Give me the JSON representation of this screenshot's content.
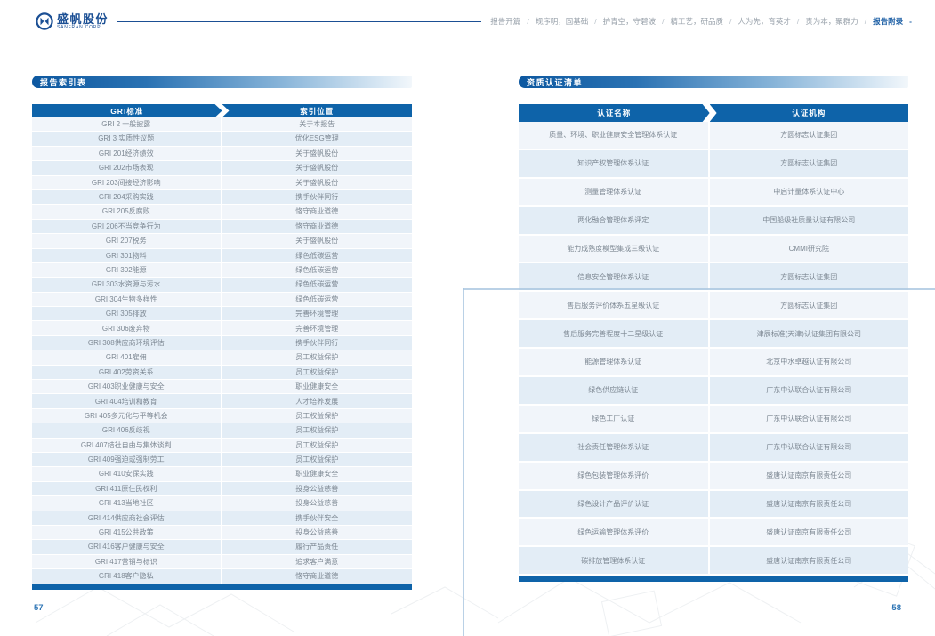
{
  "brand": {
    "logo_cn": "盛帆股份",
    "logo_en": "SANFRAN CORP"
  },
  "nav": {
    "separator": "/",
    "active_suffix": "-",
    "items": [
      {
        "label": "报告开篇",
        "active": false
      },
      {
        "label": "规序明，固基础",
        "active": false
      },
      {
        "label": "护青空，守碧波",
        "active": false
      },
      {
        "label": "精工艺，研品质",
        "active": false
      },
      {
        "label": "人为先，育英才",
        "active": false
      },
      {
        "label": "责为本，聚群力",
        "active": false
      },
      {
        "label": "报告附录",
        "active": true
      }
    ]
  },
  "left_page": {
    "section_title": "报告索引表",
    "page_number": "57",
    "table": {
      "headers": [
        "GRI标准",
        "索引位置"
      ],
      "rows": [
        [
          "GRI 2 一般披露",
          "关于本报告"
        ],
        [
          "GRI 3 实质性议题",
          "优化ESG管理"
        ],
        [
          "GRI 201经济绩效",
          "关于盛帆股份"
        ],
        [
          "GRI 202市场表现",
          "关于盛帆股份"
        ],
        [
          "GRI 203间接经济影响",
          "关于盛帆股份"
        ],
        [
          "GRI 204采购实践",
          "携手伙伴同行"
        ],
        [
          "GRI 205反腐败",
          "恪守商业道德"
        ],
        [
          "GRI 206不当竞争行为",
          "恪守商业道德"
        ],
        [
          "GRI 207税务",
          "关于盛帆股份"
        ],
        [
          "GRI 301物料",
          "绿色低碳运营"
        ],
        [
          "GRI 302能源",
          "绿色低碳运营"
        ],
        [
          "GRI 303水资源与污水",
          "绿色低碳运营"
        ],
        [
          "GRI 304生物多样性",
          "绿色低碳运营"
        ],
        [
          "GRI 305排放",
          "完善环境管理"
        ],
        [
          "GRI 306废弃物",
          "完善环境管理"
        ],
        [
          "GRI 308供应商环境评估",
          "携手伙伴同行"
        ],
        [
          "GRI 401雇佣",
          "员工权益保护"
        ],
        [
          "GRI 402劳资关系",
          "员工权益保护"
        ],
        [
          "GRI 403职业健康与安全",
          "职业健康安全"
        ],
        [
          "GRI 404培训和教育",
          "人才培养发展"
        ],
        [
          "GRI 405多元化与平等机会",
          "员工权益保护"
        ],
        [
          "GRI 406反歧视",
          "员工权益保护"
        ],
        [
          "GRI 407结社自由与集体谈判",
          "员工权益保护"
        ],
        [
          "GRI 409强迫或强制劳工",
          "员工权益保护"
        ],
        [
          "GRI 410安保实践",
          "职业健康安全"
        ],
        [
          "GRI 411原住民权利",
          "投身公益慈善"
        ],
        [
          "GRI 413当地社区",
          "投身公益慈善"
        ],
        [
          "GRI 414供应商社会评估",
          "携手伙伴安全"
        ],
        [
          "GRI 415公共政策",
          "投身公益慈善"
        ],
        [
          "GRI 416客户健康与安全",
          "履行产品责任"
        ],
        [
          "GRI 417营销与标识",
          "追求客户满意"
        ],
        [
          "GRI 418客户隐私",
          "恪守商业道德"
        ]
      ]
    }
  },
  "right_page": {
    "section_title": "资质认证清单",
    "page_number": "58",
    "table": {
      "headers": [
        "认证名称",
        "认证机构"
      ],
      "rows": [
        [
          "质量、环境、职业健康安全管理体系认证",
          "方圆标志认证集团"
        ],
        [
          "知识产权管理体系认证",
          "方圆标志认证集团"
        ],
        [
          "测量管理体系认证",
          "中启计量体系认证中心"
        ],
        [
          "两化融合管理体系评定",
          "中国船级社质量认证有限公司"
        ],
        [
          "能力成熟度模型集成三级认证",
          "CMMI研究院"
        ],
        [
          "信息安全管理体系认证",
          "方圆标志认证集团"
        ],
        [
          "售后服务评价体系五星级认证",
          "方圆标志认证集团"
        ],
        [
          "售后服务完善程度十二星级认证",
          "津辰标准(天津)认证集团有限公司"
        ],
        [
          "能源管理体系认证",
          "北京中水卓越认证有限公司"
        ],
        [
          "绿色供应链认证",
          "广东中认联合认证有限公司"
        ],
        [
          "绿色工厂认证",
          "广东中认联合认证有限公司"
        ],
        [
          "社会责任管理体系认证",
          "广东中认联合认证有限公司"
        ],
        [
          "绿色包装管理体系评价",
          "盛唐认证南京有限责任公司"
        ],
        [
          "绿色设计产品评价认证",
          "盛唐认证南京有限责任公司"
        ],
        [
          "绿色运输管理体系评价",
          "盛唐认证南京有限责任公司"
        ],
        [
          "碳排放管理体系认证",
          "盛唐认证南京有限责任公司"
        ]
      ]
    }
  },
  "colors": {
    "accent": "#0e63a9",
    "logo_blue": "#1b4f94",
    "nav_active": "#1d5fa5",
    "row_light": "#f1f5fa",
    "row_blue": "#e3edf6",
    "corner_line": "#a9c6e0",
    "cell_text": "#7d8893"
  }
}
